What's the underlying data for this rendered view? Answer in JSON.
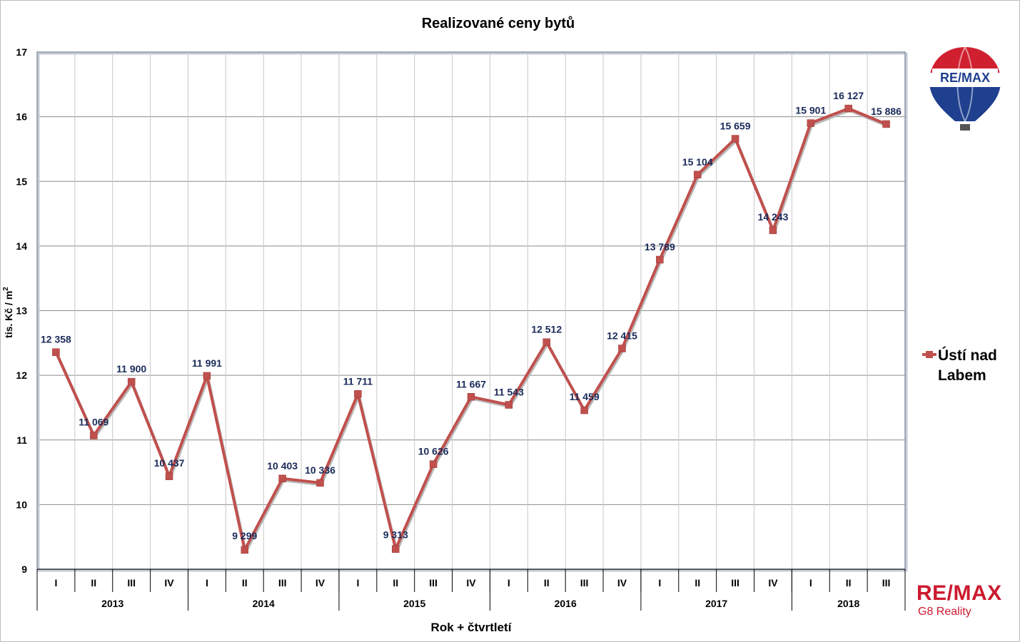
{
  "chart_data": {
    "type": "line",
    "title": "Realizované ceny bytů",
    "xlabel": "Rok + čtvrtletí",
    "ylabel_main": "tis. Kč / m",
    "ylabel_sup": "2",
    "ylim": [
      9,
      17
    ],
    "yticks": [
      "9",
      "10",
      "11",
      "12",
      "13",
      "14",
      "15",
      "16",
      "17"
    ],
    "grid": true,
    "legend_position": "right",
    "quarters": [
      "I",
      "II",
      "III",
      "IV",
      "I",
      "II",
      "III",
      "IV",
      "I",
      "II",
      "III",
      "IV",
      "I",
      "II",
      "III",
      "IV",
      "I",
      "II",
      "III",
      "IV",
      "I",
      "II",
      "III"
    ],
    "years": [
      {
        "label": "2013",
        "span": 4
      },
      {
        "label": "2014",
        "span": 4
      },
      {
        "label": "2015",
        "span": 4
      },
      {
        "label": "2016",
        "span": 4
      },
      {
        "label": "2017",
        "span": 4
      },
      {
        "label": "2018",
        "span": 3
      }
    ],
    "series": [
      {
        "name": "Ústí nad Labem",
        "name_line1": "Ústí nad",
        "name_line2": "Labem",
        "color": "#c0504d",
        "values": [
          12.358,
          11.069,
          11.9,
          10.437,
          11.991,
          9.299,
          10.403,
          10.336,
          11.711,
          9.313,
          10.626,
          11.667,
          11.543,
          12.512,
          11.459,
          12.415,
          13.789,
          15.104,
          15.659,
          14.243,
          15.901,
          16.127,
          15.886
        ],
        "labels": [
          "12 358",
          "11 069",
          "11 900",
          "10 437",
          "11 991",
          "9 299",
          "10 403",
          "10 336",
          "11 711",
          "9 313",
          "10 626",
          "11 667",
          "11 543",
          "12 512",
          "11 459",
          "12 415",
          "13 789",
          "15 104",
          "15 659",
          "14 243",
          "15 901",
          "16 127",
          "15 886"
        ]
      }
    ]
  },
  "branding": {
    "balloon_text": "RE/MAX",
    "logo_name": "RE/MAX",
    "logo_sub": "G8 Reality",
    "brand_red": "#cc1a2f",
    "brand_blue": "#1f3f8f"
  }
}
